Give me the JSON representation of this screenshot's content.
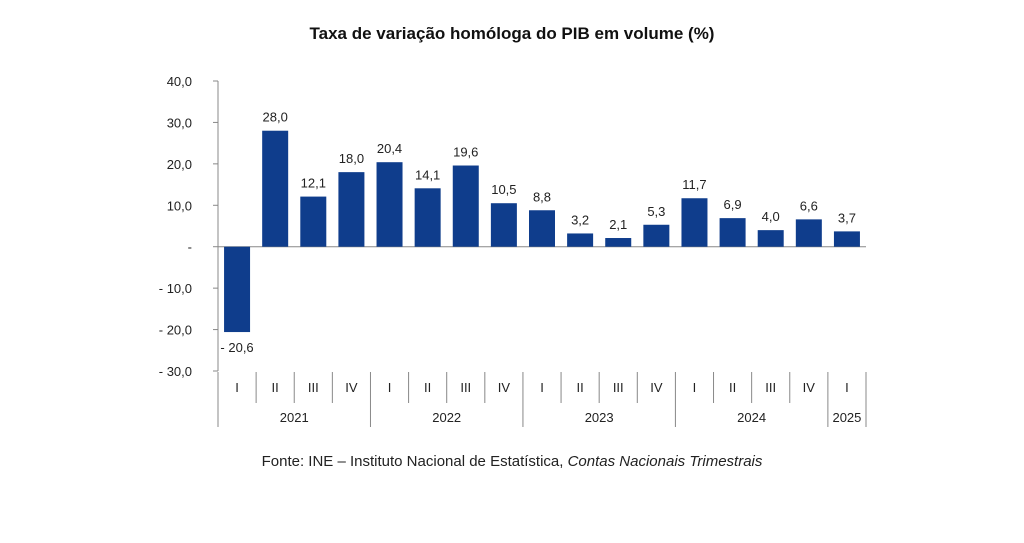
{
  "chart_data": {
    "type": "bar",
    "title": "Taxa de variação homóloga do PIB em volume (%)",
    "source": {
      "prefix": "Fonte: INE – Instituto Nacional de Estatística, ",
      "publication": "Contas Nacionais Trimestrais"
    },
    "y_ticks": [
      {
        "value": 40,
        "label": "40,0"
      },
      {
        "value": 30,
        "label": "30,0"
      },
      {
        "value": 20,
        "label": "20,0"
      },
      {
        "value": 10,
        "label": "10,0"
      },
      {
        "value": 0,
        "label": "-"
      },
      {
        "value": -10,
        "label": "- 10,0"
      },
      {
        "value": -20,
        "label": "- 20,0"
      },
      {
        "value": -30,
        "label": "- 30,0"
      }
    ],
    "ylim": [
      -30,
      40
    ],
    "categories": [
      "I",
      "II",
      "III",
      "IV",
      "I",
      "II",
      "III",
      "IV",
      "I",
      "II",
      "III",
      "IV",
      "I",
      "II",
      "III",
      "IV",
      "I"
    ],
    "values": [
      -20.6,
      28.0,
      12.1,
      18.0,
      20.4,
      14.1,
      19.6,
      10.5,
      8.8,
      3.2,
      2.1,
      5.3,
      11.7,
      6.9,
      4.0,
      6.6,
      3.7
    ],
    "value_labels": [
      "- 20,6",
      "28,0",
      "12,1",
      "18,0",
      "20,4",
      "14,1",
      "19,6",
      "10,5",
      "8,8",
      "3,2",
      "2,1",
      "5,3",
      "11,7",
      "6,9",
      "4,0",
      "6,6",
      "3,7"
    ],
    "years": [
      {
        "label": "2021",
        "count": 4
      },
      {
        "label": "2022",
        "count": 4
      },
      {
        "label": "2023",
        "count": 4
      },
      {
        "label": "2024",
        "count": 4
      },
      {
        "label": "2025",
        "count": 1
      }
    ],
    "bar_color": "#0F3D8C",
    "grid": false
  }
}
